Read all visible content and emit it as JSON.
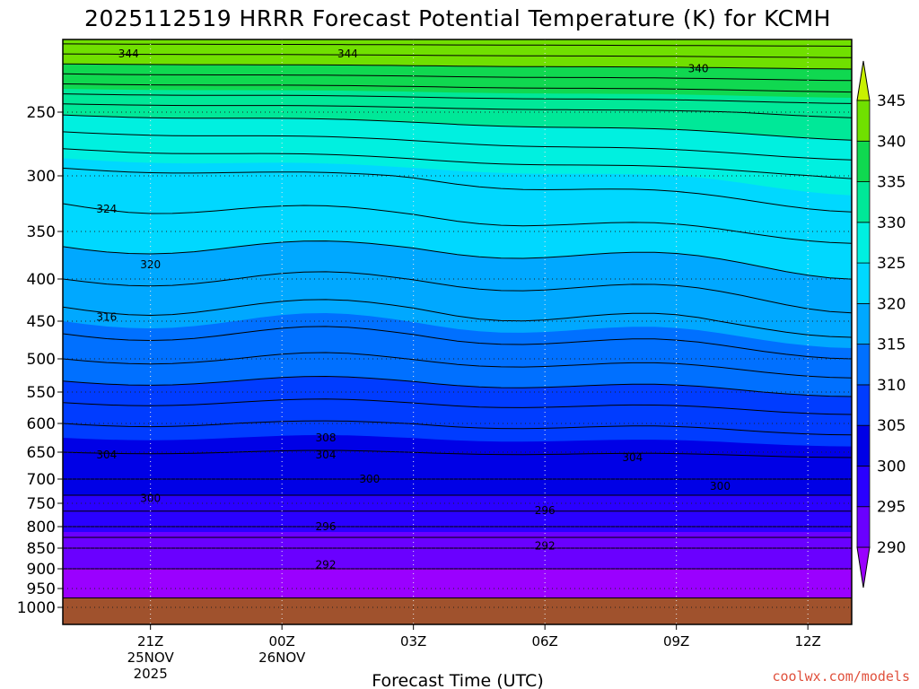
{
  "chart_data": {
    "type": "heatmap",
    "title": "2025112519 HRRR Forecast Potential Temperature (K) for KCMH",
    "xlabel": "Forecast Time (UTC)",
    "credit": "coolwx.com/models",
    "y_ticks": [
      250,
      300,
      350,
      400,
      450,
      500,
      550,
      600,
      650,
      700,
      750,
      800,
      850,
      900,
      950,
      1000
    ],
    "ylim": [
      1000,
      200
    ],
    "x_ticks": [
      {
        "hour": 2,
        "lines": [
          "21Z",
          "25NOV",
          "2025"
        ]
      },
      {
        "hour": 5,
        "lines": [
          "00Z",
          "26NOV"
        ]
      },
      {
        "hour": 8,
        "lines": [
          "03Z"
        ]
      },
      {
        "hour": 11,
        "lines": [
          "06Z"
        ]
      },
      {
        "hour": 14,
        "lines": [
          "09Z"
        ]
      },
      {
        "hour": 17,
        "lines": [
          "12Z"
        ]
      }
    ],
    "xlim": [
      0,
      18
    ],
    "colorbar": {
      "levels": [
        290,
        295,
        300,
        305,
        310,
        315,
        320,
        325,
        330,
        335,
        340,
        345
      ],
      "colors": [
        "#9a00ff",
        "#6a00ff",
        "#2a00ff",
        "#0000e6",
        "#003cff",
        "#0070ff",
        "#00a8ff",
        "#00d8ff",
        "#00f0e0",
        "#00e898",
        "#10d850",
        "#70e000",
        "#c8f000"
      ]
    },
    "theta_profile": [
      {
        "p": 975,
        "theta": 288
      },
      {
        "p": 900,
        "theta": 290
      },
      {
        "p": 850,
        "theta": 292
      },
      {
        "p": 800,
        "theta": 296
      },
      {
        "p": 750,
        "theta": 299
      },
      {
        "p": 700,
        "theta": 302
      },
      {
        "p": 650,
        "theta": 304
      },
      {
        "p": 600,
        "theta": 306
      },
      {
        "p": 550,
        "theta": 309
      },
      {
        "p": 500,
        "theta": 312
      },
      {
        "p": 450,
        "theta": 315
      },
      {
        "p": 400,
        "theta": 318
      },
      {
        "p": 350,
        "theta": 321
      },
      {
        "p": 300,
        "theta": 324
      },
      {
        "p": 250,
        "theta": 331
      },
      {
        "p": 200,
        "theta": 345
      }
    ],
    "contour_labels": [
      {
        "text": "344",
        "hour": 1.5,
        "p": 210
      },
      {
        "text": "344",
        "hour": 6.5,
        "p": 210
      },
      {
        "text": "340",
        "hour": 14.5,
        "p": 220
      },
      {
        "text": "324",
        "hour": 1.0,
        "p": 330
      },
      {
        "text": "320",
        "hour": 2.0,
        "p": 385
      },
      {
        "text": "316",
        "hour": 1.0,
        "p": 445
      },
      {
        "text": "308",
        "hour": 6.0,
        "p": 625
      },
      {
        "text": "304",
        "hour": 1.0,
        "p": 655
      },
      {
        "text": "304",
        "hour": 6.0,
        "p": 655
      },
      {
        "text": "304",
        "hour": 13.0,
        "p": 660
      },
      {
        "text": "300",
        "hour": 7.0,
        "p": 700
      },
      {
        "text": "300",
        "hour": 15.0,
        "p": 715
      },
      {
        "text": "300",
        "hour": 2.0,
        "p": 740
      },
      {
        "text": "296",
        "hour": 11.0,
        "p": 765
      },
      {
        "text": "296",
        "hour": 6.0,
        "p": 800
      },
      {
        "text": "292",
        "hour": 11.0,
        "p": 845
      },
      {
        "text": "292",
        "hour": 6.0,
        "p": 890
      }
    ]
  }
}
